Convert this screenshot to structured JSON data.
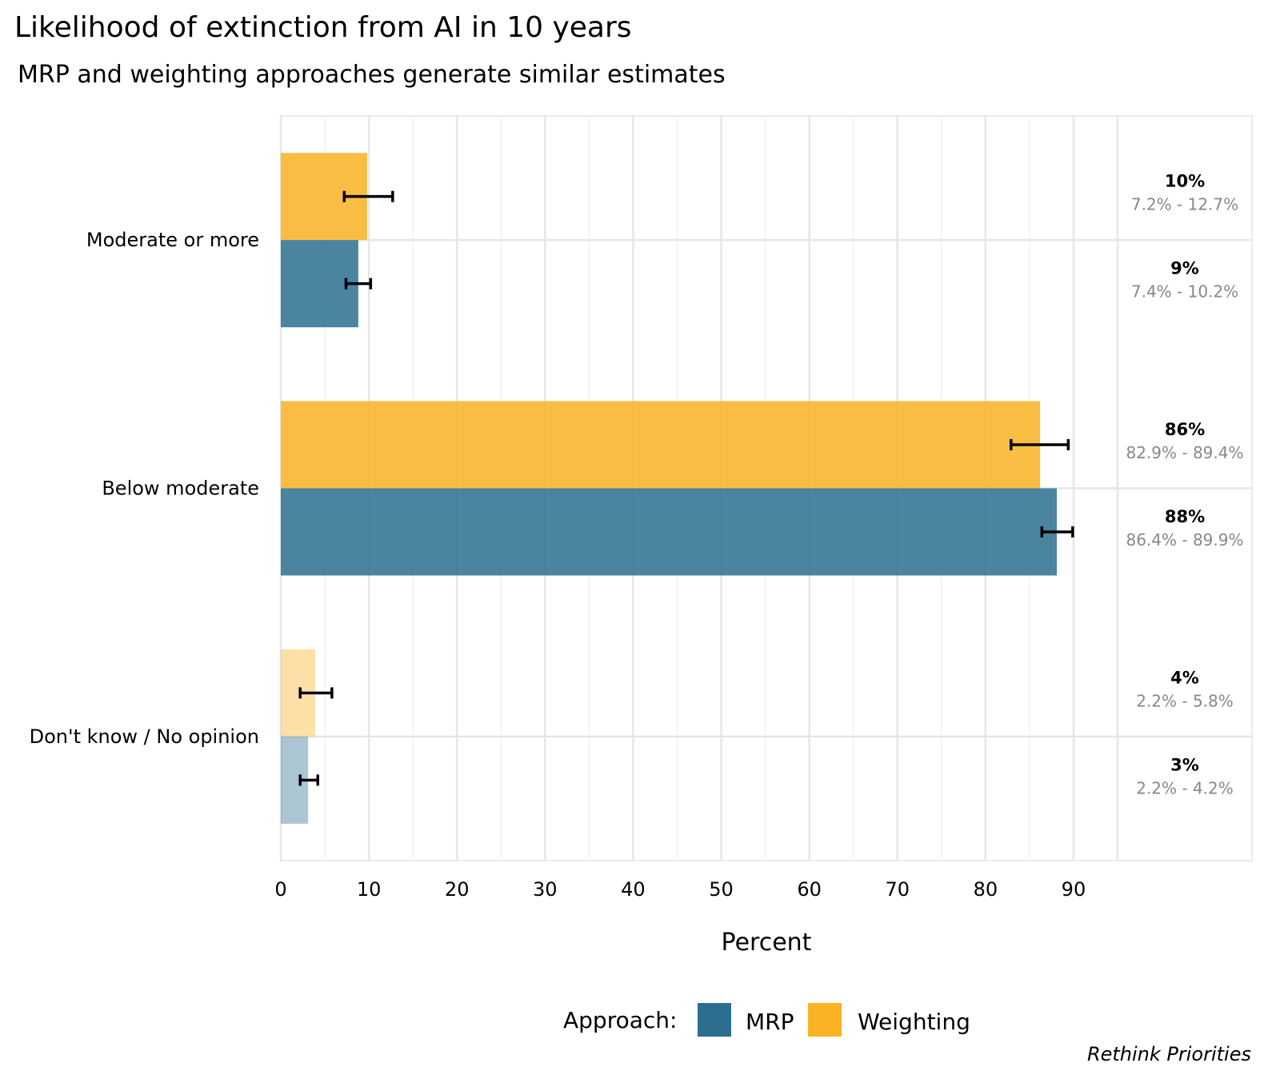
{
  "title": "Likelihood of extinction from AI in 10 years",
  "subtitle": "MRP and weighting approaches generate similar estimates",
  "caption": "Rethink Priorities",
  "legend": {
    "title": "Approach:",
    "items": [
      {
        "label": "MRP",
        "color": "#2c6e8f"
      },
      {
        "label": "Weighting",
        "color": "#f9b223"
      }
    ]
  },
  "chart_data": {
    "type": "bar",
    "orientation": "horizontal",
    "xlabel": "Percent",
    "xlim": [
      0,
      95
    ],
    "xticks": [
      0,
      10,
      20,
      30,
      40,
      50,
      60,
      70,
      80,
      90
    ],
    "grid": true,
    "legend_position": "bottom",
    "categories": [
      "Moderate or more",
      "Below moderate",
      "Don't know / No opinion"
    ],
    "series": [
      {
        "name": "Weighting",
        "color": "#f9b223",
        "values": [
          9.8,
          86.2,
          3.9
        ],
        "ci_low": [
          7.2,
          82.9,
          2.2
        ],
        "ci_high": [
          12.7,
          89.4,
          5.8
        ],
        "labels": [
          "10%",
          "86%",
          "4%"
        ],
        "ci_labels": [
          "7.2% - 12.7%",
          "82.9% - 89.4%",
          "2.2% - 5.8%"
        ],
        "opacity": [
          0.85,
          0.85,
          0.4
        ]
      },
      {
        "name": "MRP",
        "color": "#2c6e8f",
        "values": [
          8.8,
          88.1,
          3.1
        ],
        "ci_low": [
          7.4,
          86.4,
          2.2
        ],
        "ci_high": [
          10.2,
          89.9,
          4.2
        ],
        "labels": [
          "9%",
          "88%",
          "3%"
        ],
        "ci_labels": [
          "7.4% - 10.2%",
          "86.4% - 89.9%",
          "2.2% - 4.2%"
        ],
        "opacity": [
          0.85,
          0.85,
          0.4
        ]
      }
    ]
  }
}
